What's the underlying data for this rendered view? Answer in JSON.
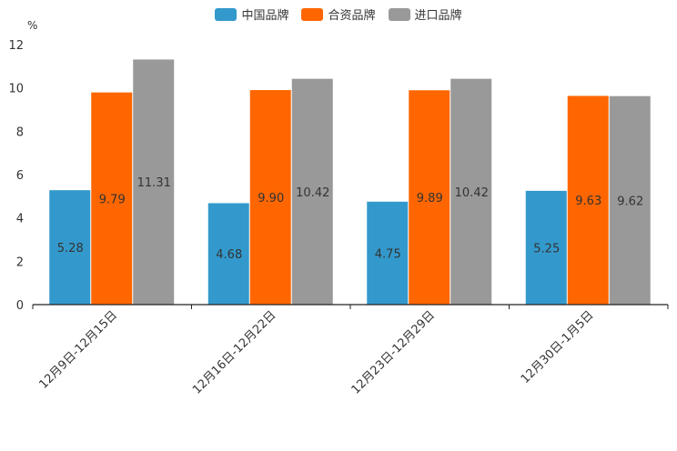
{
  "chart_data": {
    "type": "bar",
    "unit": "%",
    "categories": [
      "12月9日-12月15日",
      "12月16日-12月22日",
      "12月23日-12月29日",
      "12月30日-1月5日"
    ],
    "series": [
      {
        "name": "中国品牌",
        "color": "#3399cc",
        "values": [
          5.28,
          4.68,
          4.75,
          5.25
        ],
        "labels": [
          "5.28",
          "4.68",
          "4.75",
          "5.25"
        ]
      },
      {
        "name": "合资品牌",
        "color": "#ff6600",
        "values": [
          9.79,
          9.9,
          9.89,
          9.63
        ],
        "labels": [
          "9.79",
          "9.90",
          "9.89",
          "9.63"
        ]
      },
      {
        "name": "进口品牌",
        "color": "#999999",
        "values": [
          11.31,
          10.42,
          10.42,
          9.62
        ],
        "labels": [
          "11.31",
          "10.42",
          "10.42",
          "9.62"
        ]
      }
    ],
    "ylim": [
      0,
      12
    ],
    "yticks": [
      "0",
      "2",
      "4",
      "6",
      "8",
      "10",
      "12"
    ],
    "legend_position": "top-center"
  }
}
